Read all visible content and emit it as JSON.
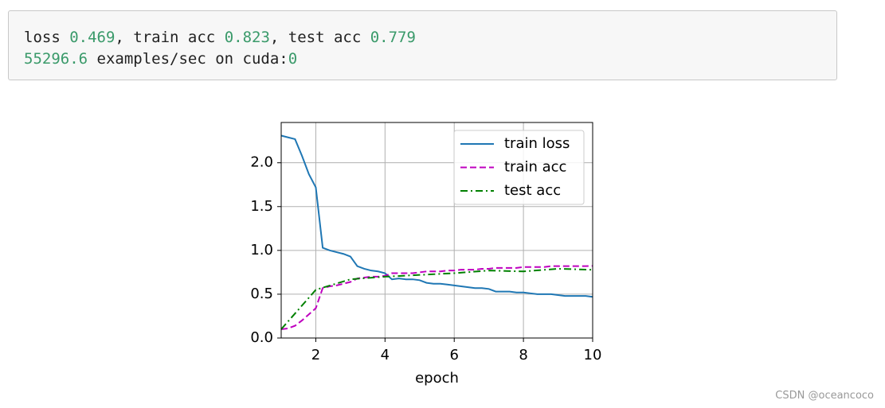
{
  "output": {
    "lines": [
      [
        "loss ",
        0.469,
        ", train acc ",
        0.823,
        ", test acc ",
        0.779
      ],
      [
        55296.6,
        " examples/sec on cuda:",
        0
      ]
    ]
  },
  "watermark": "CSDN @oceancoco",
  "chart_data": {
    "type": "line",
    "xlabel": "epoch",
    "x": [
      1.0,
      1.2,
      1.4,
      1.6,
      1.8,
      2.0,
      2.2,
      2.4,
      2.6,
      2.8,
      3.0,
      3.2,
      3.4,
      3.6,
      3.8,
      4.0,
      4.2,
      4.4,
      4.6,
      4.8,
      5.0,
      5.2,
      5.4,
      5.6,
      5.8,
      6.0,
      6.2,
      6.4,
      6.6,
      6.8,
      7.0,
      7.2,
      7.4,
      7.6,
      7.8,
      8.0,
      8.2,
      8.4,
      8.6,
      8.8,
      9.0,
      9.2,
      9.4,
      9.6,
      9.8,
      10.0
    ],
    "series": [
      {
        "name": "train loss",
        "color": "#1f77b4",
        "linestyle": "solid",
        "values": [
          2.31,
          2.29,
          2.27,
          2.08,
          1.87,
          1.72,
          1.03,
          1.0,
          0.98,
          0.96,
          0.93,
          0.82,
          0.79,
          0.77,
          0.76,
          0.74,
          0.67,
          0.68,
          0.67,
          0.67,
          0.66,
          0.63,
          0.62,
          0.62,
          0.61,
          0.6,
          0.59,
          0.58,
          0.57,
          0.57,
          0.56,
          0.53,
          0.53,
          0.53,
          0.52,
          0.52,
          0.51,
          0.5,
          0.5,
          0.5,
          0.49,
          0.48,
          0.48,
          0.48,
          0.48,
          0.47
        ]
      },
      {
        "name": "train acc",
        "color": "#bf00bf",
        "linestyle": "dashed",
        "values": [
          0.1,
          0.11,
          0.14,
          0.2,
          0.27,
          0.34,
          0.57,
          0.59,
          0.6,
          0.62,
          0.64,
          0.68,
          0.69,
          0.7,
          0.7,
          0.71,
          0.74,
          0.74,
          0.74,
          0.74,
          0.75,
          0.76,
          0.76,
          0.76,
          0.77,
          0.77,
          0.78,
          0.78,
          0.78,
          0.79,
          0.79,
          0.8,
          0.8,
          0.8,
          0.8,
          0.81,
          0.81,
          0.81,
          0.81,
          0.82,
          0.82,
          0.82,
          0.82,
          0.82,
          0.82,
          0.823
        ]
      },
      {
        "name": "test acc",
        "color": "#008000",
        "linestyle": "dashdot",
        "x": [
          1,
          2,
          3,
          4,
          5,
          6,
          7,
          8,
          9,
          10
        ],
        "values": [
          0.1,
          0.55,
          0.67,
          0.7,
          0.72,
          0.74,
          0.77,
          0.76,
          0.79,
          0.779
        ]
      }
    ],
    "xlim": [
      1,
      10
    ],
    "xticks": [
      2,
      4,
      6,
      8,
      10
    ],
    "ylim": [
      0,
      2.46
    ],
    "yticks": [
      {
        "value": 0,
        "label": "0.0"
      },
      0.5,
      {
        "value": 1,
        "label": "1.0"
      },
      1.5,
      {
        "value": 2,
        "label": "2.0"
      }
    ],
    "grid": true,
    "legend": "upper right"
  }
}
